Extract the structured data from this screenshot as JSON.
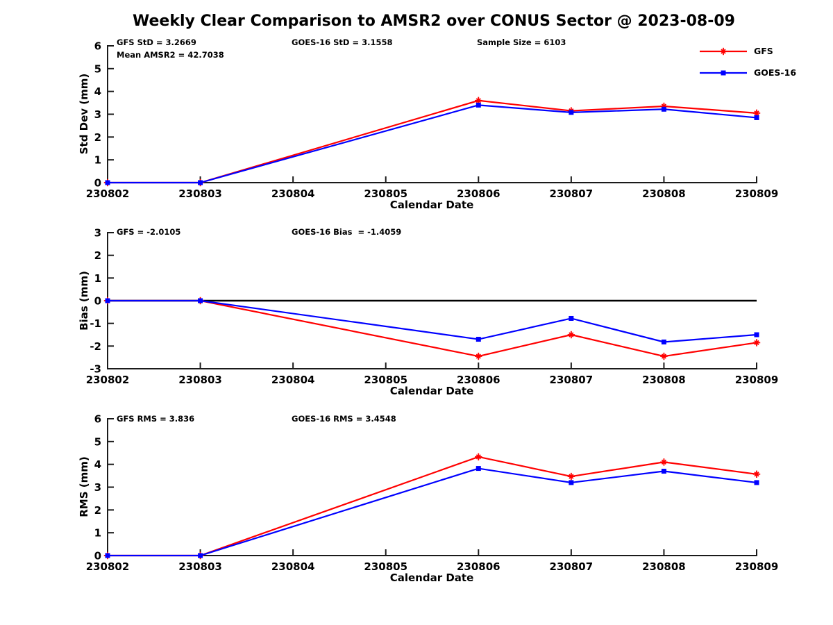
{
  "title": "Weekly Clear Comparison to AMSR2 over CONUS Sector @ 2023-08-09",
  "colors": {
    "gfs": "#ff0000",
    "goes16": "#0000ff",
    "axis": "#1a1a1a",
    "background": "#ffffff"
  },
  "legend": {
    "position": "top-right",
    "entries": [
      {
        "label": "GFS",
        "color": "#ff0000",
        "marker": "asterisk"
      },
      {
        "label": "GOES-16",
        "color": "#0000ff",
        "marker": "square"
      }
    ]
  },
  "chart_data": [
    {
      "type": "line",
      "panel": "std-dev",
      "ylabel": "Std Dev (mm)",
      "xlabel": "Calendar Date",
      "ylim": [
        0,
        6
      ],
      "yticks": [
        0,
        1,
        2,
        3,
        4,
        5,
        6
      ],
      "xlim": [
        230802,
        230809
      ],
      "xticks": [
        230802,
        230803,
        230804,
        230805,
        230806,
        230807,
        230808,
        230809
      ],
      "grid": false,
      "zero_line": false,
      "annotations": [
        {
          "text": "GFS StD = 3.2669"
        },
        {
          "text": "Mean AMSR2 = 42.7038"
        },
        {
          "text": "GOES-16 StD = 3.1558"
        },
        {
          "text": "Sample Size = 6103"
        }
      ],
      "series": [
        {
          "name": "GFS",
          "color": "#ff0000",
          "marker": "asterisk",
          "x": [
            230802,
            230803,
            230806,
            230807,
            230808,
            230809
          ],
          "y": [
            0,
            0,
            3.6,
            3.15,
            3.35,
            3.05
          ]
        },
        {
          "name": "GOES-16",
          "color": "#0000ff",
          "marker": "square",
          "x": [
            230802,
            230803,
            230806,
            230807,
            230808,
            230809
          ],
          "y": [
            0,
            0,
            3.4,
            3.08,
            3.22,
            2.85
          ]
        }
      ]
    },
    {
      "type": "line",
      "panel": "bias",
      "ylabel": "Bias (mm)",
      "xlabel": "Calendar Date",
      "ylim": [
        -3,
        3
      ],
      "yticks": [
        -3,
        -2,
        -1,
        0,
        1,
        2,
        3
      ],
      "xlim": [
        230802,
        230809
      ],
      "xticks": [
        230802,
        230803,
        230804,
        230805,
        230806,
        230807,
        230808,
        230809
      ],
      "grid": false,
      "zero_line": true,
      "annotations": [
        {
          "text": "GFS = -2.0105"
        },
        {
          "text": "GOES-16 Bias  = -1.4059"
        }
      ],
      "series": [
        {
          "name": "GFS",
          "color": "#ff0000",
          "marker": "asterisk",
          "x": [
            230802,
            230803,
            230806,
            230807,
            230808,
            230809
          ],
          "y": [
            0,
            0,
            -2.45,
            -1.5,
            -2.45,
            -1.85
          ]
        },
        {
          "name": "GOES-16",
          "color": "#0000ff",
          "marker": "square",
          "x": [
            230802,
            230803,
            230806,
            230807,
            230808,
            230809
          ],
          "y": [
            0,
            0,
            -1.7,
            -0.78,
            -1.82,
            -1.5
          ]
        }
      ]
    },
    {
      "type": "line",
      "panel": "rms",
      "ylabel": "RMS (mm)",
      "xlabel": "Calendar Date",
      "ylim": [
        0,
        6
      ],
      "yticks": [
        0,
        1,
        2,
        3,
        4,
        5,
        6
      ],
      "xlim": [
        230802,
        230809
      ],
      "xticks": [
        230802,
        230803,
        230804,
        230805,
        230806,
        230807,
        230808,
        230809
      ],
      "grid": false,
      "zero_line": false,
      "annotations": [
        {
          "text": "GFS RMS = 3.836"
        },
        {
          "text": "GOES-16 RMS = 3.4548"
        }
      ],
      "series": [
        {
          "name": "GFS",
          "color": "#ff0000",
          "marker": "asterisk",
          "x": [
            230802,
            230803,
            230806,
            230807,
            230808,
            230809
          ],
          "y": [
            0,
            0,
            4.33,
            3.47,
            4.1,
            3.57
          ]
        },
        {
          "name": "GOES-16",
          "color": "#0000ff",
          "marker": "square",
          "x": [
            230802,
            230803,
            230806,
            230807,
            230808,
            230809
          ],
          "y": [
            0,
            0,
            3.82,
            3.2,
            3.7,
            3.2
          ]
        }
      ]
    }
  ]
}
